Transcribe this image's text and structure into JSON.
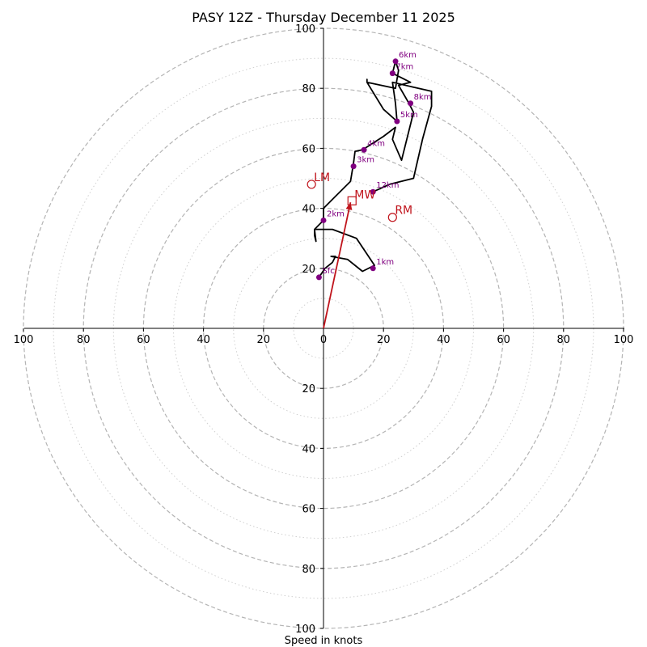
{
  "chart_data": {
    "type": "hodograph",
    "title": "PASY 12Z - Thursday December 11 2025",
    "xlabel": "Speed in knots",
    "ylabel": "",
    "units": "knots",
    "xlim": [
      -100,
      100
    ],
    "ylim": [
      -100,
      100
    ],
    "ring_speeds_major": [
      20,
      40,
      60,
      80,
      100
    ],
    "ring_speeds_minor": [
      10,
      30,
      50,
      70,
      90
    ],
    "x_ticks": [
      {
        "value": -100,
        "label": "100"
      },
      {
        "value": -80,
        "label": "80"
      },
      {
        "value": -60,
        "label": "60"
      },
      {
        "value": -40,
        "label": "40"
      },
      {
        "value": -20,
        "label": "20"
      },
      {
        "value": 0,
        "label": "0"
      },
      {
        "value": 20,
        "label": "20"
      },
      {
        "value": 40,
        "label": "40"
      },
      {
        "value": 60,
        "label": "60"
      },
      {
        "value": 80,
        "label": "80"
      },
      {
        "value": 100,
        "label": "100"
      }
    ],
    "y_ticks": [
      {
        "value": 100,
        "label": "100"
      },
      {
        "value": 80,
        "label": "80"
      },
      {
        "value": 60,
        "label": "60"
      },
      {
        "value": 40,
        "label": "40"
      },
      {
        "value": 20,
        "label": "20"
      },
      {
        "value": -20,
        "label": "20"
      },
      {
        "value": -40,
        "label": "40"
      },
      {
        "value": -60,
        "label": "60"
      },
      {
        "value": -80,
        "label": "80"
      },
      {
        "value": -100,
        "label": "100"
      }
    ],
    "hodograph_trace": {
      "color": "#000000",
      "points": [
        [
          -1.5,
          17
        ],
        [
          0.5,
          20
        ],
        [
          3,
          22
        ],
        [
          4,
          24
        ],
        [
          2.5,
          24
        ],
        [
          8,
          23
        ],
        [
          13,
          19
        ],
        [
          17,
          21
        ],
        [
          11,
          30
        ],
        [
          3,
          33
        ],
        [
          -3,
          33
        ],
        [
          -3,
          31
        ],
        [
          -2.5,
          29
        ],
        [
          -3,
          33
        ],
        [
          0,
          36
        ],
        [
          0,
          40
        ],
        [
          4,
          44
        ],
        [
          9,
          49
        ],
        [
          10,
          55
        ],
        [
          10.5,
          59
        ],
        [
          13,
          59.5
        ],
        [
          20,
          64
        ],
        [
          24,
          67
        ],
        [
          23,
          63
        ],
        [
          26,
          56
        ],
        [
          28,
          64
        ],
        [
          30,
          72
        ],
        [
          28.5,
          75
        ],
        [
          25,
          81
        ],
        [
          29,
          82
        ],
        [
          23,
          85
        ],
        [
          24,
          89
        ],
        [
          25,
          86
        ],
        [
          24,
          80
        ],
        [
          14.5,
          82
        ],
        [
          14.5,
          83
        ],
        [
          14.5,
          82
        ],
        [
          20,
          73
        ],
        [
          24.5,
          69
        ],
        [
          24,
          75
        ],
        [
          23,
          82
        ],
        [
          36,
          79
        ],
        [
          36,
          74
        ],
        [
          33,
          63
        ],
        [
          30,
          50
        ],
        [
          22,
          48
        ],
        [
          16.5,
          45.5
        ]
      ]
    },
    "height_markers": [
      {
        "label": "Sfc",
        "u": -1.5,
        "v": 17
      },
      {
        "label": "1km",
        "u": 16.5,
        "v": 20
      },
      {
        "label": "2km",
        "u": 0,
        "v": 36
      },
      {
        "label": "3km",
        "u": 10,
        "v": 54
      },
      {
        "label": "4km",
        "u": 13.5,
        "v": 59.5
      },
      {
        "label": "5km",
        "u": 24.5,
        "v": 69
      },
      {
        "label": "6km",
        "u": 24,
        "v": 89
      },
      {
        "label": "7km",
        "u": 23,
        "v": 85
      },
      {
        "label": "8km",
        "u": 29,
        "v": 75
      },
      {
        "label": "12km",
        "u": 16.5,
        "v": 45.5
      }
    ],
    "storm_motion": {
      "color": "#c0141c",
      "mean_wind": {
        "label": "MW",
        "u": 9.5,
        "v": 42.5
      },
      "left_mover": {
        "label": "LM",
        "u": -4,
        "v": 48
      },
      "right_mover": {
        "label": "RM",
        "u": 23,
        "v": 37
      },
      "vector_from_origin_to": {
        "u": 9,
        "v": 42
      }
    },
    "colors": {
      "trace": "#000000",
      "markers": "#800080",
      "storm_motion": "#c0141c",
      "rings": "#b4b4b4"
    }
  }
}
